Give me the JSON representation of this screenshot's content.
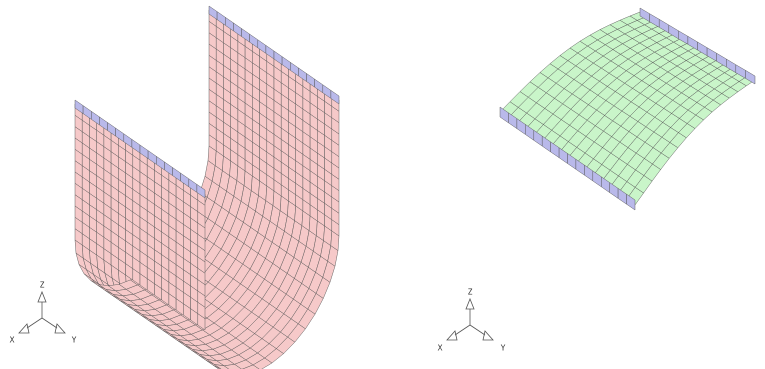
{
  "left_view": {
    "triad": {
      "z": "Z",
      "x": "X",
      "y": "Y"
    }
  },
  "right_view": {
    "triad": {
      "z": "Z",
      "x": "X",
      "y": "Y"
    }
  }
}
